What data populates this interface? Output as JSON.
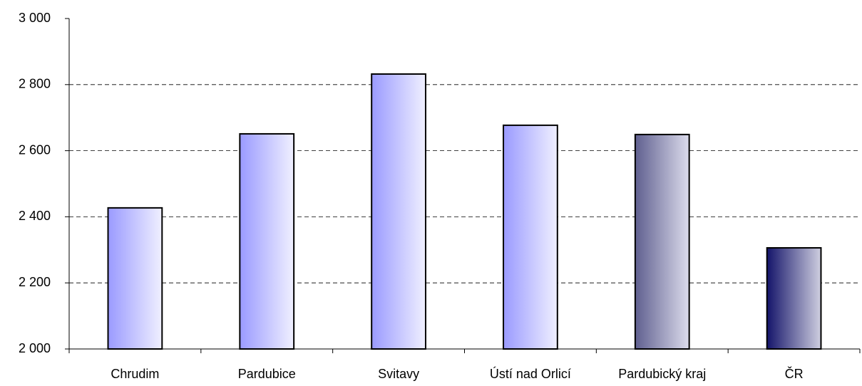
{
  "chart_data": {
    "type": "bar",
    "categories": [
      "Chrudim",
      "Pardubice",
      "Svitavy",
      "Ústí nad Orlicí",
      "Pardubický kraj",
      "ČR"
    ],
    "values": [
      2427,
      2651,
      2832,
      2677,
      2649,
      2306
    ],
    "colors": [
      [
        "#9a9aff",
        "#f0f0ff"
      ],
      [
        "#9a9aff",
        "#f0f0ff"
      ],
      [
        "#9a9aff",
        "#f0f0ff"
      ],
      [
        "#9a9aff",
        "#f0f0ff"
      ],
      [
        "#5f5f8f",
        "#dcdcec"
      ],
      [
        "#14146a",
        "#cfcfe0"
      ]
    ],
    "ylim": [
      2000,
      3000
    ],
    "yticks": [
      {
        "value": 2000,
        "label": "2 000"
      },
      {
        "value": 2200,
        "label": "2 200"
      },
      {
        "value": 2400,
        "label": "2 400"
      },
      {
        "value": 2600,
        "label": "2 600"
      },
      {
        "value": 2800,
        "label": "2 800"
      },
      {
        "value": 3000,
        "label": "3 000"
      }
    ],
    "grid": true
  }
}
